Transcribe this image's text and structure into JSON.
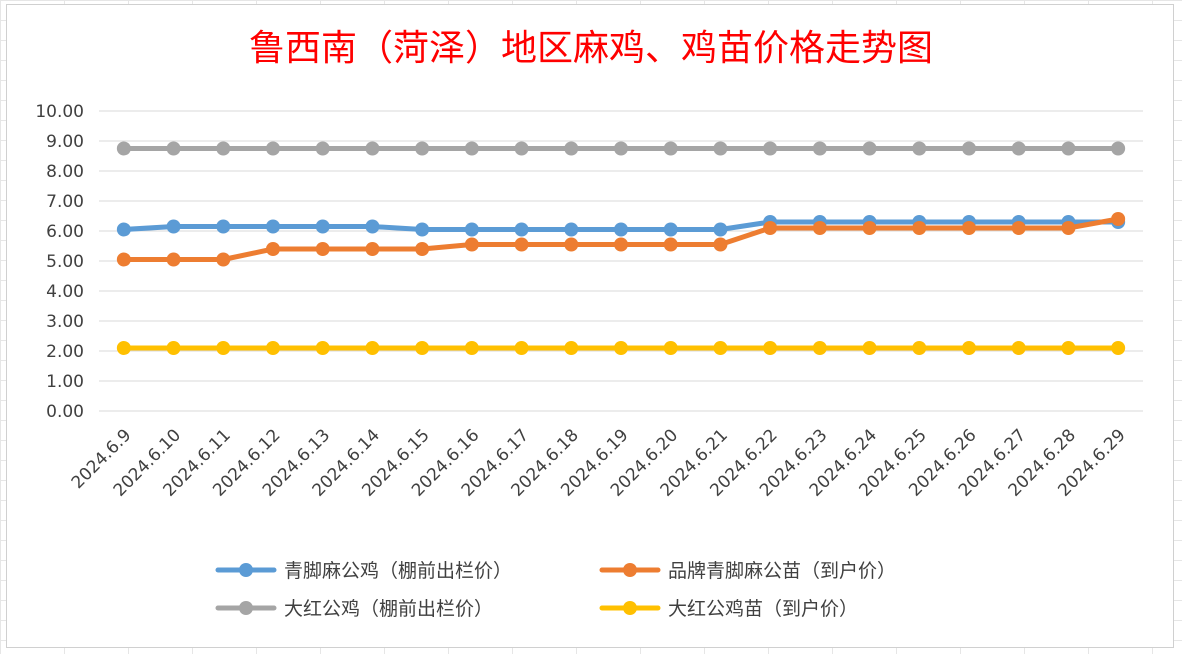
{
  "chart_data": {
    "type": "line",
    "title": "鲁西南（菏泽）地区麻鸡、鸡苗价格走势图",
    "xlabel": "",
    "ylabel": "",
    "ylim": [
      0,
      10
    ],
    "yticks": [
      "0.00",
      "1.00",
      "2.00",
      "3.00",
      "4.00",
      "5.00",
      "6.00",
      "7.00",
      "8.00",
      "9.00",
      "10.00"
    ],
    "grid": true,
    "legend_position": "bottom",
    "categories": [
      "2024.6.9",
      "2024.6.10",
      "2024.6.11",
      "2024.6.12",
      "2024.6.13",
      "2024.6.14",
      "2024.6.15",
      "2024.6.16",
      "2024.6.17",
      "2024.6.18",
      "2024.6.19",
      "2024.6.20",
      "2024.6.21",
      "2024.6.22",
      "2024.6.23",
      "2024.6.24",
      "2024.6.25",
      "2024.6.26",
      "2024.6.27",
      "2024.6.28",
      "2024.6.29"
    ],
    "series": [
      {
        "name": "青脚麻公鸡（棚前出栏价）",
        "color": "#5b9bd5",
        "values": [
          6.05,
          6.15,
          6.15,
          6.15,
          6.15,
          6.15,
          6.05,
          6.05,
          6.05,
          6.05,
          6.05,
          6.05,
          6.05,
          6.3,
          6.3,
          6.3,
          6.3,
          6.3,
          6.3,
          6.3,
          6.3
        ]
      },
      {
        "name": "品牌青脚麻公苗（到户价）",
        "color": "#ed7d31",
        "values": [
          5.05,
          5.05,
          5.05,
          5.4,
          5.4,
          5.4,
          5.4,
          5.55,
          5.55,
          5.55,
          5.55,
          5.55,
          5.55,
          6.1,
          6.1,
          6.1,
          6.1,
          6.1,
          6.1,
          6.1,
          6.4
        ]
      },
      {
        "name": "大红公鸡（棚前出栏价）",
        "color": "#a5a5a5",
        "values": [
          8.75,
          8.75,
          8.75,
          8.75,
          8.75,
          8.75,
          8.75,
          8.75,
          8.75,
          8.75,
          8.75,
          8.75,
          8.75,
          8.75,
          8.75,
          8.75,
          8.75,
          8.75,
          8.75,
          8.75,
          8.75
        ]
      },
      {
        "name": "大红公鸡苗（到户价）",
        "color": "#ffc000",
        "values": [
          2.1,
          2.1,
          2.1,
          2.1,
          2.1,
          2.1,
          2.1,
          2.1,
          2.1,
          2.1,
          2.1,
          2.1,
          2.1,
          2.1,
          2.1,
          2.1,
          2.1,
          2.1,
          2.1,
          2.1,
          2.1
        ]
      }
    ]
  }
}
